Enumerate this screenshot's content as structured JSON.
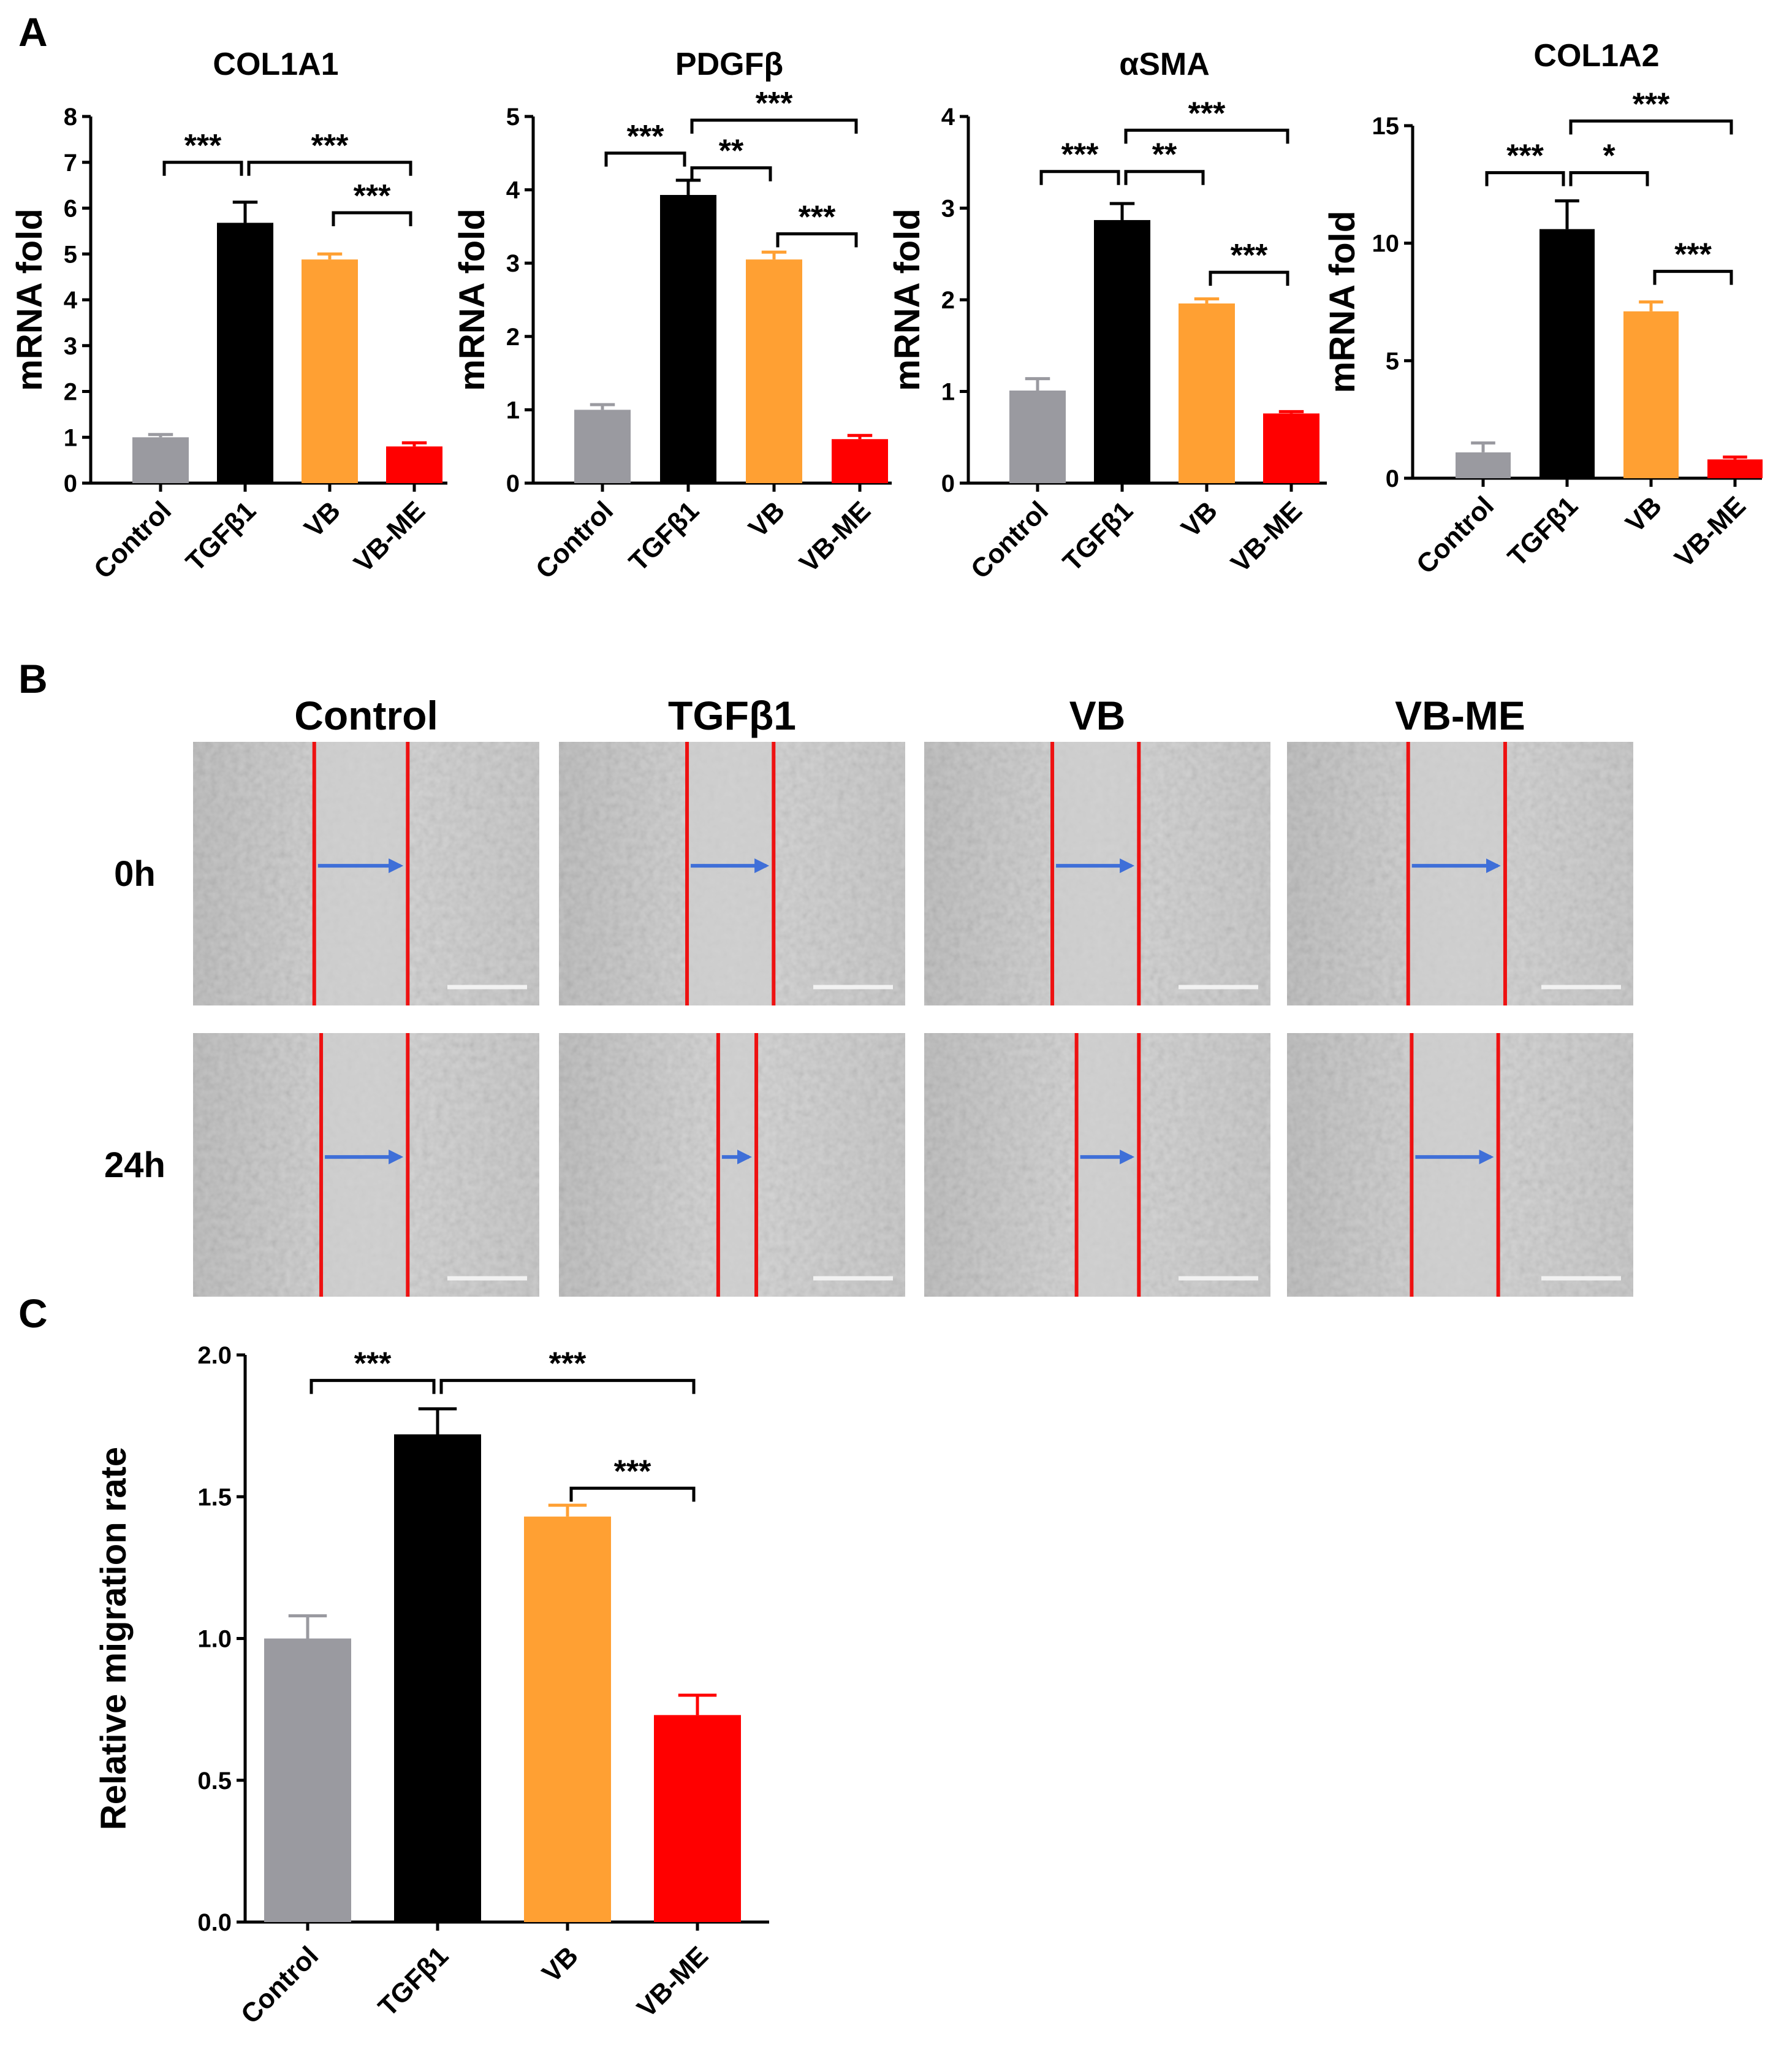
{
  "panels": {
    "a": "A",
    "b": "B",
    "c": "C"
  },
  "colors": {
    "control": "#9a9aa0",
    "tgfb1": "#000000",
    "vb": "#ffa033",
    "vbme": "#ff0000"
  },
  "chart_data": [
    {
      "type": "bar",
      "title": "COL1A1",
      "ylabel": "mRNA fold",
      "categories": [
        "Control",
        "TGFβ1",
        "VB",
        "VB-ME"
      ],
      "values": [
        1.0,
        5.68,
        4.88,
        0.8
      ],
      "errors": [
        0.06,
        0.45,
        0.12,
        0.08
      ],
      "ylim": [
        0,
        8
      ],
      "yticks": [
        "0",
        "1",
        "2",
        "3",
        "4",
        "5",
        "6",
        "7",
        "8"
      ],
      "significance": [
        {
          "from": 0,
          "to": 1,
          "label": "***"
        },
        {
          "from": 1,
          "to": 3,
          "label": "***"
        },
        {
          "from": 2,
          "to": 3,
          "label": "***"
        }
      ]
    },
    {
      "type": "bar",
      "title": "PDGFβ",
      "ylabel": "mRNA fold",
      "categories": [
        "Control",
        "TGFβ1",
        "VB",
        "VB-ME"
      ],
      "values": [
        1.0,
        3.93,
        3.05,
        0.6
      ],
      "errors": [
        0.07,
        0.2,
        0.1,
        0.05
      ],
      "ylim": [
        0,
        5
      ],
      "yticks": [
        "0",
        "1",
        "2",
        "3",
        "4",
        "5"
      ],
      "significance": [
        {
          "from": 0,
          "to": 1,
          "label": "***"
        },
        {
          "from": 1,
          "to": 2,
          "label": "**"
        },
        {
          "from": 1,
          "to": 3,
          "label": "***"
        },
        {
          "from": 2,
          "to": 3,
          "label": "***"
        }
      ]
    },
    {
      "type": "bar",
      "title": "αSMA",
      "ylabel": "mRNA fold",
      "categories": [
        "Control",
        "TGFβ1",
        "VB",
        "VB-ME"
      ],
      "values": [
        1.01,
        2.87,
        1.96,
        0.76
      ],
      "errors": [
        0.13,
        0.18,
        0.05,
        0.02
      ],
      "ylim": [
        0,
        4
      ],
      "yticks": [
        "0",
        "1",
        "2",
        "3",
        "4"
      ],
      "significance": [
        {
          "from": 0,
          "to": 1,
          "label": "***"
        },
        {
          "from": 1,
          "to": 2,
          "label": "**"
        },
        {
          "from": 1,
          "to": 3,
          "label": "***"
        },
        {
          "from": 2,
          "to": 3,
          "label": "***"
        }
      ]
    },
    {
      "type": "bar",
      "title": "COL1A2",
      "ylabel": "mRNA fold",
      "categories": [
        "Control",
        "TGFβ1",
        "VB",
        "VB-ME"
      ],
      "values": [
        1.1,
        10.6,
        7.1,
        0.8
      ],
      "errors": [
        0.4,
        1.2,
        0.4,
        0.1
      ],
      "ylim": [
        0,
        15
      ],
      "yticks": [
        "0",
        "5",
        "10",
        "15"
      ],
      "significance": [
        {
          "from": 0,
          "to": 1,
          "label": "***"
        },
        {
          "from": 1,
          "to": 2,
          "label": "*"
        },
        {
          "from": 1,
          "to": 3,
          "label": "***"
        },
        {
          "from": 2,
          "to": 3,
          "label": "***"
        }
      ]
    },
    {
      "type": "bar",
      "title": "",
      "ylabel": "Relative migration rate",
      "categories": [
        "Control",
        "TGFβ1",
        "VB",
        "VB-ME"
      ],
      "values": [
        1.0,
        1.72,
        1.43,
        0.73
      ],
      "errors": [
        0.08,
        0.09,
        0.04,
        0.07
      ],
      "ylim": [
        0,
        2
      ],
      "yticks": [
        "0.0",
        "0.5",
        "1.0",
        "1.5",
        "2.0"
      ],
      "significance": [
        {
          "from": 0,
          "to": 1,
          "label": "***"
        },
        {
          "from": 1,
          "to": 3,
          "label": "***"
        },
        {
          "from": 2,
          "to": 3,
          "label": "***"
        }
      ]
    }
  ],
  "migration": {
    "columns": [
      "Control",
      "TGFβ1",
      "VB",
      "VB-ME"
    ],
    "rows": [
      "0h",
      "24h"
    ]
  }
}
